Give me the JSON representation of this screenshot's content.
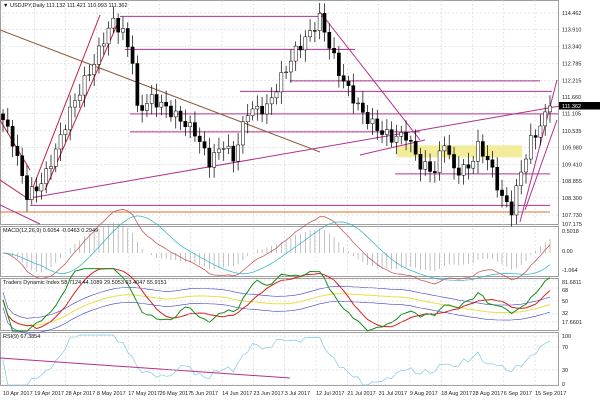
{
  "header": {
    "symbol": "USDJPY,Daily",
    "ohlc": "111.132 111.421 110.993 111.362"
  },
  "chart_data": [
    {
      "type": "candlestick",
      "name": "USDJPY Daily",
      "current_price": "111.362",
      "y_ticks": [
        "114.462",
        "113.910",
        "113.340",
        "112.785",
        "112.215",
        "111.660",
        "111.105",
        "110.535",
        "109.980",
        "109.410",
        "108.855",
        "108.300",
        "107.730",
        "107.175"
      ],
      "ylim": [
        107.175,
        114.75
      ],
      "x_ticks": [
        "10 Apr 2017",
        "19 Apr 2017",
        "28 Apr 2017",
        "8 May 2017",
        "17 May 2017",
        "26 May 2017",
        "5 Jun 2017",
        "14 Jun 2017",
        "23 Jun 2017",
        "3 Jul 2017",
        "12 Jul 2017",
        "21 Jul 2017",
        "31 Jul 2017",
        "9 Aug 2017",
        "18 Aug 2017",
        "28 Aug 2017",
        "6 Sep 2017",
        "15 Sep 2017"
      ],
      "close_anchors": [
        [
          0,
          110.9
        ],
        [
          2,
          110.2
        ],
        [
          5,
          108.4
        ],
        [
          7,
          108.6
        ],
        [
          9,
          109.1
        ],
        [
          12,
          110.3
        ],
        [
          14,
          111.2
        ],
        [
          17,
          112.2
        ],
        [
          19,
          112.8
        ],
        [
          21,
          113.6
        ],
        [
          23,
          114.2
        ],
        [
          25,
          113.8
        ],
        [
          27,
          112.9
        ],
        [
          28,
          111.2
        ],
        [
          31,
          111.6
        ],
        [
          34,
          111.3
        ],
        [
          37,
          110.9
        ],
        [
          40,
          110.5
        ],
        [
          43,
          109.5
        ],
        [
          46,
          110.1
        ],
        [
          48,
          109.6
        ],
        [
          51,
          111.2
        ],
        [
          55,
          111.3
        ],
        [
          58,
          112.3
        ],
        [
          61,
          113.2
        ],
        [
          64,
          113.8
        ],
        [
          66,
          114.3
        ],
        [
          68,
          113.4
        ],
        [
          70,
          112.5
        ],
        [
          72,
          111.9
        ],
        [
          75,
          111.1
        ],
        [
          78,
          110.6
        ],
        [
          81,
          110.3
        ],
        [
          84,
          110.4
        ],
        [
          87,
          109.4
        ],
        [
          90,
          109.2
        ],
        [
          92,
          110.2
        ],
        [
          94,
          109.2
        ],
        [
          97,
          109.3
        ],
        [
          99,
          110.0
        ],
        [
          101,
          109.6
        ],
        [
          104,
          108.3
        ],
        [
          106,
          107.9
        ],
        [
          108,
          109.2
        ],
        [
          110,
          110.2
        ],
        [
          112,
          110.7
        ],
        [
          114,
          111.362
        ]
      ],
      "bars": 115
    },
    {
      "type": "line",
      "name": "MACD",
      "title": "MACD(12,26,9) 0.6054 -0.0463 0.2949",
      "y_ticks": [
        "0.5018",
        "0.00",
        "-1.064"
      ]
    },
    {
      "type": "line",
      "name": "TDI",
      "title": "Traders Dynamic Index 58.7124 44.1089 29.5053 63.4047 55.9151",
      "y_ticks": [
        "81.6811",
        "68",
        "50",
        "32",
        "17.6601"
      ]
    },
    {
      "type": "line",
      "name": "RSI",
      "title": "RSI(9) 67.3854",
      "y_ticks": [
        "100",
        "70",
        "30",
        "0"
      ]
    }
  ],
  "colors": {
    "bull": "#ffffff",
    "bear": "#000000",
    "level": "#b0308f",
    "trend": "#8b5a3c",
    "zone": "#f3ec9a",
    "macd_main": "#c06060",
    "macd_signal": "#40b8c8",
    "tdi_green": "#1a8a1a",
    "tdi_red": "#d02020",
    "tdi_yellow": "#e8e040",
    "tdi_band": "#4040c0",
    "rsi": "#80c8e8"
  }
}
